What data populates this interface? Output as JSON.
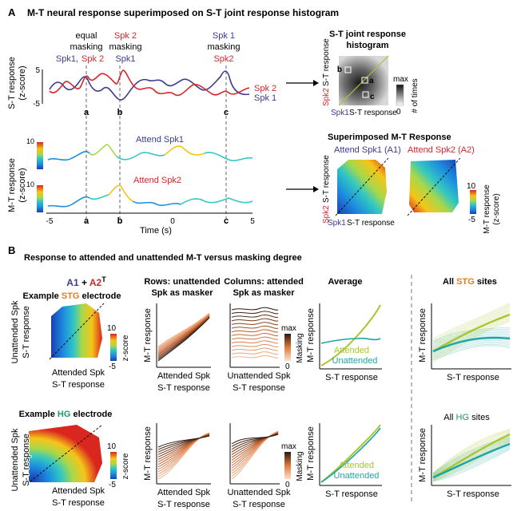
{
  "panel_a": {
    "letter": "A",
    "title": "M-T neural response superimposed on S-T joint response histogram",
    "annot": {
      "equal": [
        "equal",
        "masking"
      ],
      "spk1_spk2": [
        "Spk1,",
        "Spk 2"
      ],
      "spk2_masking": [
        "Spk 2",
        "masking",
        "Spk1"
      ],
      "spk1_masking": [
        "Spk 1",
        "masking",
        "Spk2"
      ]
    },
    "st_ylabel": [
      "S-T response",
      "(z-score)"
    ],
    "st_ticks": [
      "5",
      "-5"
    ],
    "legend": {
      "spk2": "Spk 2",
      "spk1": "Spk 1"
    },
    "markers": [
      "a",
      "b",
      "c"
    ],
    "mt_ylabel": [
      "M-T response",
      "(z-score)"
    ],
    "mt_ticks": [
      "10",
      "10"
    ],
    "attend1": "Attend Spk1",
    "attend2": "Attend Spk2",
    "x_ticks": [
      "-5",
      "0",
      "5"
    ],
    "xlabel": "Time (s)",
    "hist": {
      "title": [
        "S-T joint response",
        "histogram"
      ],
      "ylabel_spk": "Spk2",
      "ylabel": "S-T response",
      "xlabel_spk": "Spk1",
      "xlabel": "S-T response",
      "cbar_max": "max",
      "cbar_min": "0",
      "cbar_label": "# of times",
      "point_labels": [
        "a",
        "b",
        "c"
      ]
    },
    "sup": {
      "title": "Superimposed M-T Response",
      "attend1": "Attend Spk1 (A1)",
      "attend2": "Attend Spk2 (A2)",
      "ylabel_spk": "Spk2",
      "ylabel": "S-T response",
      "xlabel_spk": "Spk1",
      "xlabel": "S-T response",
      "cbar_ticks": [
        "10",
        "-5"
      ],
      "cbar_label": [
        "M-T response",
        "(z-score)"
      ]
    }
  },
  "panel_b": {
    "letter": "B",
    "title": "Response to attended and unattended M-T versus masking degree",
    "a1a2": {
      "a1": "A1",
      "plus": " + ",
      "a2": "A2",
      "sup": "T"
    },
    "stg_title": {
      "pre": "Example ",
      "region": "STG",
      "post": " electrode"
    },
    "hg_title": {
      "pre": "Example ",
      "region": "HG",
      "post": " electrode"
    },
    "heat_ylabel": [
      "Unattended Spk",
      "S-T response"
    ],
    "heat_xlabel": [
      "Attended Spk",
      "S-T response"
    ],
    "heat_cbar_ticks": [
      "10",
      "-5"
    ],
    "heat_cbar_label": "z-score",
    "rows_title": [
      "Rows: unattended",
      "Spk as masker"
    ],
    "rows_xlabel": [
      "Attended Spk",
      "S-T response"
    ],
    "cols_title": [
      "Columns: attended",
      "Spk as masker"
    ],
    "cols_xlabel": [
      "Unattended Spk",
      "S-T response"
    ],
    "mask_cbar": {
      "max": "max",
      "min": "0",
      "label": "Masking"
    },
    "mt_ylabel": "M-T response",
    "avg_title": "Average",
    "avg_xlabel": "S-T response",
    "attended": "Attended",
    "unattended": "Unattended",
    "all_stg": {
      "pre": "All ",
      "region": "STG",
      "post": " sites"
    },
    "all_hg": {
      "pre": "All ",
      "region": "HG",
      "post": " sites"
    },
    "all_xlabel": "S-T response"
  },
  "colors": {
    "spk1": "#3b3b8f",
    "spk2": "#d7262b",
    "stg": "#e87b1e",
    "hg": "#1b9a6e",
    "attended": "#a9c530",
    "unattended": "#1ea5a5"
  }
}
